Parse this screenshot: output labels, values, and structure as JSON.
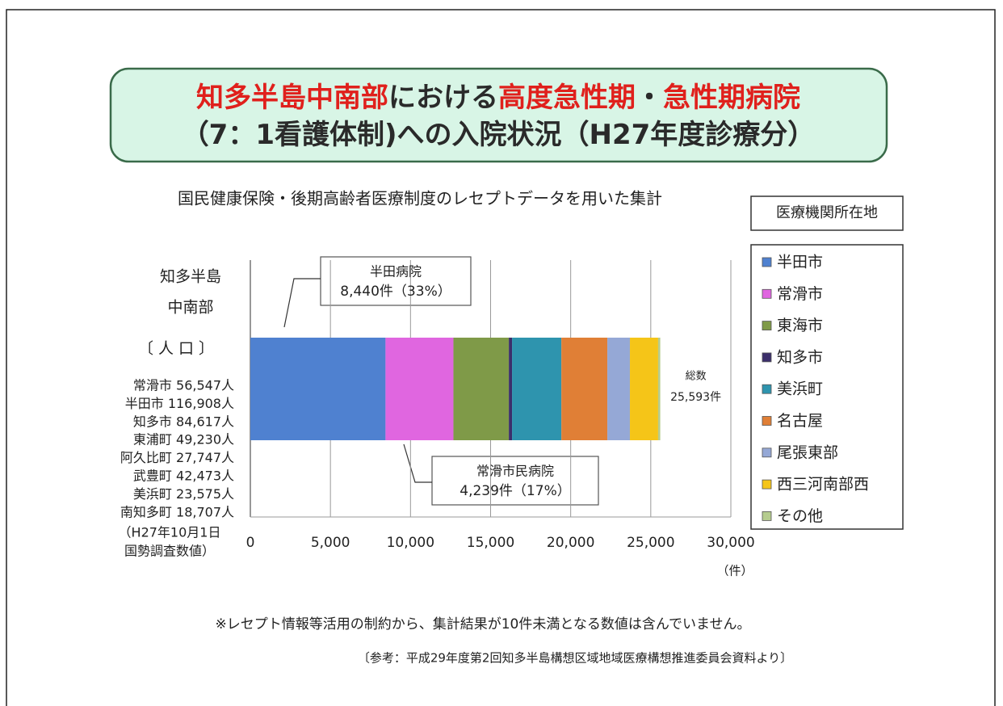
{
  "header": {
    "title_lines": [
      [
        {
          "text": "知多半島中南部",
          "color": "#e0201c"
        },
        {
          "text": "における",
          "color": "#2a2a2a"
        },
        {
          "text": "高度急性期",
          "color": "#e0201c"
        },
        {
          "text": "・",
          "color": "#2a2a2a"
        },
        {
          "text": "急性期病院",
          "color": "#e0201c"
        }
      ],
      [
        {
          "text": "（7：1看護体制)への入院状況（H27年度診療分）",
          "color": "#2a2a2a"
        }
      ]
    ]
  },
  "subtitle": "国民健康保険・後期高齢者医療制度のレセプトデータを用いた集計",
  "region": [
    "知多半島",
    "中南部"
  ],
  "population": {
    "title": "〔 人 口 〕",
    "rows": [
      "常滑市 56,547人",
      "半田市 116,908人",
      "知多市 84,617人",
      "東浦町 49,230人",
      "阿久比町 27,747人",
      "武豊町 42,473人",
      "美浜町 23,575人",
      "南知多町 18,707人"
    ],
    "note": [
      "（H27年10月1日",
      "国勢調査数値）"
    ]
  },
  "chart_data": {
    "type": "stacked-bar-horizontal",
    "legend_title": "医療機関所在地",
    "legend": "right",
    "grid": true,
    "xlim": [
      0,
      30000
    ],
    "xticks": [
      0,
      {
        "value": 5000,
        "label": "5,000"
      },
      {
        "value": 10000,
        "label": "10,000"
      },
      {
        "value": 15000,
        "label": "15,000"
      },
      {
        "value": 20000,
        "label": "20,000"
      },
      {
        "value": 25000,
        "label": "25,000"
      },
      {
        "value": 30000,
        "label": "30,000"
      }
    ],
    "x_unit": "（件）",
    "series": [
      {
        "name": "半田市",
        "color": "#4f81d0",
        "values": [
          8440
        ],
        "value_labels": [
          "8,440件（33%）"
        ],
        "annotation": "半田病院"
      },
      {
        "name": "常滑市",
        "color": "#e066e0",
        "values": [
          4239
        ],
        "value_labels": [
          "4,239件（17%）"
        ],
        "annotation": "常滑市民病院"
      },
      {
        "name": "東海市",
        "color": "#7f9a48",
        "values": [
          3460
        ]
      },
      {
        "name": "知多市",
        "color": "#3c2f6b",
        "values": [
          200
        ]
      },
      {
        "name": "美浜町",
        "color": "#2e94ae",
        "values": [
          3080
        ]
      },
      {
        "name": "名古屋",
        "color": "#e07f36",
        "values": [
          2870
        ]
      },
      {
        "name": "尾張東部",
        "color": "#95a8d6",
        "values": [
          1410
        ]
      },
      {
        "name": "西三河南部西",
        "color": "#f5c518",
        "values": [
          1760
        ]
      },
      {
        "name": "その他",
        "color": "#b5cc8e",
        "values": [
          134
        ]
      }
    ],
    "total": {
      "name": "総数",
      "value": 25593,
      "label": "25,593件"
    }
  },
  "footnote": "※レセプト情報等活用の制約から、集計結果が10件未満となる数値は含んでいません。",
  "source": "〔参考：平成29年度第2回知多半島構想区域地域医療構想推進委員会資料より〕"
}
